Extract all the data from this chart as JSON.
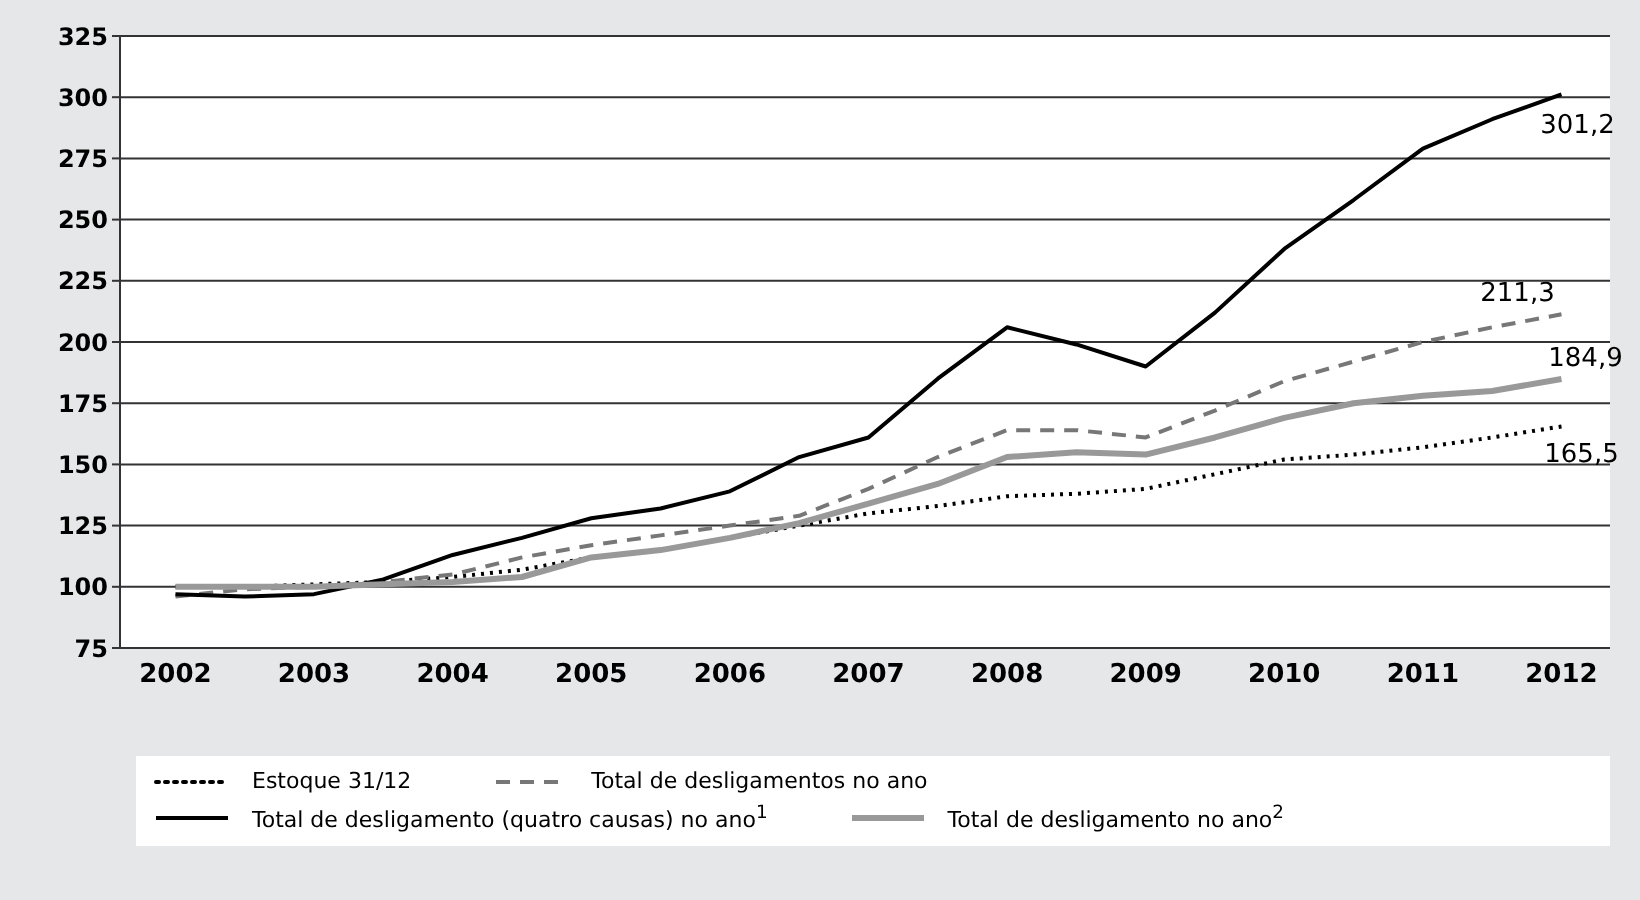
{
  "chart_data": {
    "type": "line",
    "x": [
      2002,
      2002.5,
      2003,
      2003.5,
      2004,
      2004.5,
      2005,
      2005.5,
      2006,
      2006.5,
      2007,
      2007.5,
      2008,
      2008.5,
      2009,
      2009.5,
      2010,
      2010.5,
      2011,
      2011.5,
      2012
    ],
    "xlim": [
      2001.6,
      2012.35
    ],
    "xticks": [
      2002,
      2003,
      2004,
      2005,
      2006,
      2007,
      2008,
      2009,
      2010,
      2011,
      2012
    ],
    "ylim": [
      75,
      325
    ],
    "yticks": [
      75,
      100,
      125,
      150,
      175,
      200,
      225,
      250,
      275,
      300,
      325
    ],
    "grid": "y",
    "legend": "bottom",
    "marker": "none",
    "series": [
      {
        "name": "Estoque 31/12",
        "color": "#000000",
        "line_style": "dotted",
        "values": [
          100,
          100,
          101,
          102,
          104,
          107,
          112,
          115,
          120,
          125,
          130,
          133,
          137,
          138,
          140,
          146,
          152,
          154,
          157,
          161,
          165.5
        ],
        "value_labels": [
          null,
          null,
          null,
          null,
          null,
          null,
          null,
          null,
          null,
          null,
          null,
          null,
          null,
          null,
          null,
          null,
          null,
          null,
          null,
          null,
          "165,5"
        ]
      },
      {
        "name": "Total de desligamentos no ano",
        "color": "#777777",
        "line_style": "dashed",
        "values": [
          96,
          99,
          100,
          102,
          105,
          112,
          117,
          121,
          125,
          129,
          140,
          153,
          164,
          164,
          161,
          172,
          184,
          192,
          200,
          206,
          211.3
        ],
        "value_labels": [
          null,
          null,
          null,
          null,
          null,
          null,
          null,
          null,
          null,
          null,
          null,
          null,
          null,
          null,
          null,
          null,
          null,
          null,
          null,
          null,
          "211,3"
        ]
      },
      {
        "name": "Total de desligamento (quatro causas) no ano$^{1}$",
        "color": "#000000",
        "line_style": "solid",
        "values": [
          97,
          96,
          97,
          103,
          113,
          120,
          128,
          132,
          139,
          153,
          161,
          185,
          206,
          199,
          190,
          212,
          238,
          258,
          279,
          291,
          301.2
        ],
        "value_labels": [
          null,
          null,
          null,
          null,
          null,
          null,
          null,
          null,
          null,
          null,
          null,
          null,
          null,
          null,
          null,
          null,
          null,
          null,
          null,
          null,
          "301,2"
        ]
      },
      {
        "name": "Total de desligamento no ano$^{2}$",
        "color": "#999999",
        "line_style": "solid",
        "values": [
          100,
          100,
          100,
          101,
          102,
          104,
          112,
          115,
          120,
          126,
          134,
          142,
          153,
          155,
          154,
          161,
          169,
          175,
          178,
          180,
          184.9
        ],
        "value_labels": [
          null,
          null,
          null,
          null,
          null,
          null,
          null,
          null,
          null,
          null,
          null,
          null,
          null,
          null,
          null,
          null,
          null,
          null,
          null,
          null,
          "184,9"
        ]
      }
    ]
  }
}
